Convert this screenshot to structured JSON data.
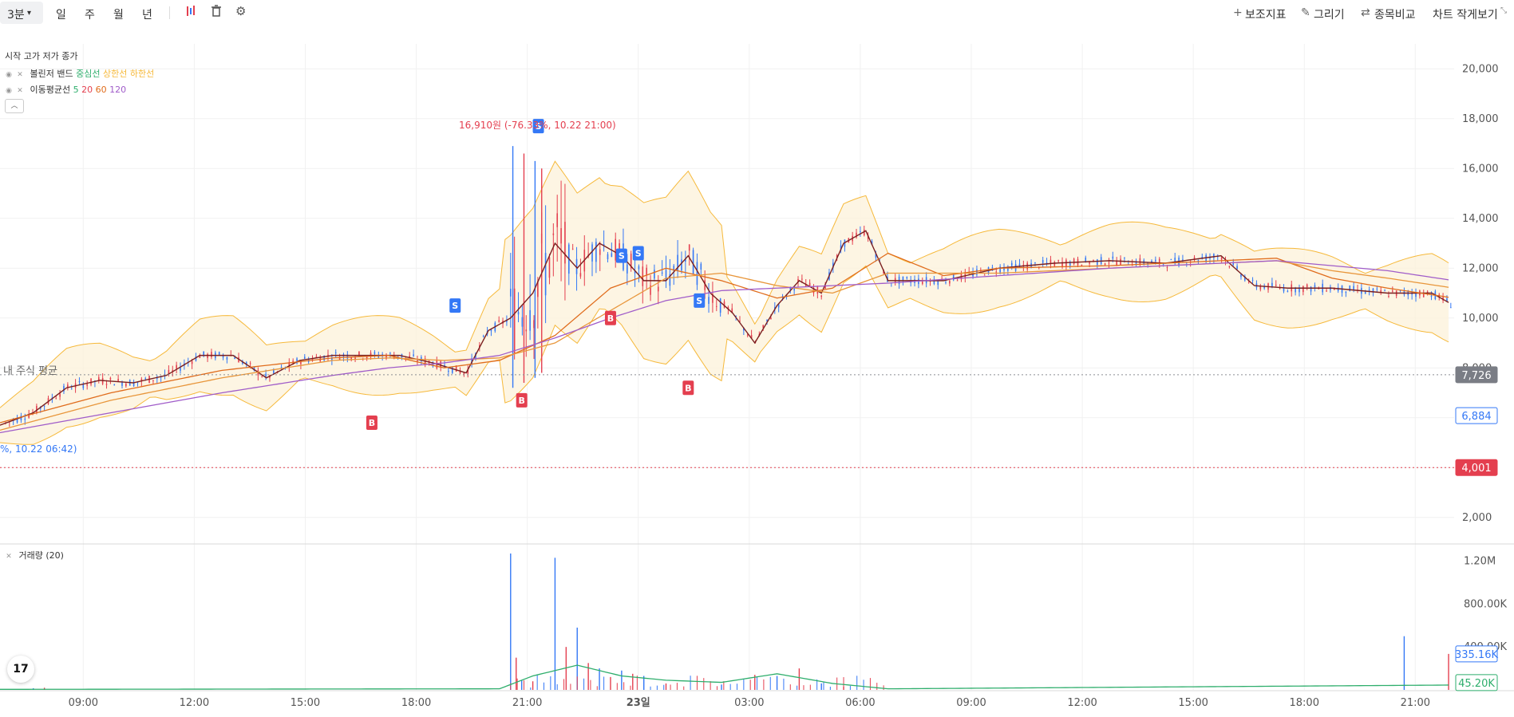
{
  "toolbar": {
    "interval": "3분",
    "day": "일",
    "week": "주",
    "month": "월",
    "year": "년",
    "indicators": "보조지표",
    "draw": "그리기",
    "compare": "종목비교",
    "shrink": "차트 작게보기"
  },
  "legend": {
    "ohlc": "시작  고가  저가  종가",
    "bb_name": "볼린저 밴드",
    "bb_mid": "중심선",
    "bb_upper": "상한선",
    "bb_lower": "하한선",
    "ma_name": "이동평균선",
    "ma5": "5",
    "ma20": "20",
    "ma60": "60",
    "ma120": "120",
    "volume": "거래량 (20)"
  },
  "annotations": {
    "my_avg_label": "내 주식 평균",
    "high_label": "16,910원 (-76.33%, 10.22 21:00)",
    "low_label": "%, 10.22 06:42)"
  },
  "colors": {
    "bb": "#f6b93b",
    "bb_fill": "#fdf3dc",
    "ma5": "#7a1f1f",
    "ma20": "#e06c1c",
    "ma60": "#a05cc9",
    "ma120": "#a05cc9",
    "ma_mid": "#2eae6c",
    "up": "#e43f4f",
    "down": "#3478f6",
    "buy_badge": "#e43f4f",
    "sell_badge": "#3478f6",
    "avg_badge": "#7a7d85",
    "vol_ma": "#2eae6c"
  },
  "chart_data": [
    {
      "type": "line",
      "title": "",
      "x_ticks": [
        "09:00",
        "12:00",
        "15:00",
        "18:00",
        "21:00",
        "23일",
        "03:00",
        "06:00",
        "09:00",
        "12:00",
        "15:00",
        "18:00",
        "21:00"
      ],
      "y_ticks": [
        "2,000",
        "4,000",
        "6,000",
        "8,000",
        "10,000",
        "12,000",
        "14,000",
        "16,000",
        "18,000",
        "20,000"
      ],
      "ylim": [
        1000,
        21000
      ],
      "xlim": [
        0,
        13.1
      ],
      "series": [
        {
          "name": "5",
          "x": [
            0,
            0.3,
            0.6,
            0.9,
            1.2,
            1.5,
            1.8,
            2.1,
            2.4,
            2.7,
            3.0,
            3.3,
            3.6,
            3.9,
            4.2,
            4.4,
            4.6,
            4.8,
            5.0,
            5.2,
            5.4,
            5.6,
            5.8,
            6.0,
            6.2,
            6.4,
            6.6,
            6.8,
            7.0,
            7.2,
            7.4,
            7.6,
            7.8,
            8.0,
            8.5,
            9.0,
            9.5,
            10.0,
            10.5,
            11.0,
            11.3,
            11.6,
            12.0,
            12.5,
            12.9,
            13.1
          ],
          "y": [
            5700,
            6200,
            7200,
            7500,
            7400,
            7700,
            8500,
            8500,
            7600,
            8300,
            8500,
            8500,
            8500,
            8200,
            7800,
            9500,
            10000,
            11000,
            13000,
            12000,
            13000,
            12500,
            11500,
            11500,
            12500,
            11000,
            10200,
            9000,
            10500,
            11500,
            11000,
            13000,
            13500,
            11500,
            11500,
            12000,
            12200,
            12300,
            12200,
            12500,
            11300,
            11200,
            11200,
            11000,
            11000,
            10500
          ]
        },
        {
          "name": "20",
          "x": [
            0,
            1,
            2,
            3,
            3.5,
            4,
            4.5,
            5,
            5.5,
            6,
            6.5,
            7,
            7.5,
            8,
            8.5,
            9,
            10,
            11,
            11.5,
            12,
            12.5,
            13.1
          ],
          "y": [
            5800,
            7000,
            7900,
            8400,
            8500,
            8000,
            8300,
            9300,
            11200,
            12000,
            11500,
            10800,
            11200,
            12600,
            11700,
            12000,
            12100,
            12300,
            12400,
            11600,
            11200,
            10800
          ]
        },
        {
          "name": "60",
          "x": [
            0,
            1,
            2,
            3,
            3.5,
            4,
            4.5,
            5,
            5.5,
            6,
            6.5,
            7,
            7.5,
            8,
            9,
            10,
            11,
            11.5,
            12,
            12.5,
            13.1
          ],
          "y": [
            5500,
            6700,
            7600,
            8300,
            8400,
            8300,
            8400,
            9000,
            10300,
            11600,
            11800,
            11300,
            11000,
            11800,
            11800,
            12000,
            12200,
            12300,
            11900,
            11600,
            11200
          ]
        },
        {
          "name": "120",
          "x": [
            0,
            1,
            2,
            3,
            3.5,
            4,
            4.5,
            5,
            5.5,
            6,
            6.5,
            7,
            7.5,
            8,
            9,
            10,
            11,
            11.5,
            12,
            12.5,
            13.1
          ],
          "y": [
            5400,
            6200,
            7000,
            7700,
            8000,
            8200,
            8500,
            9200,
            10000,
            10700,
            11100,
            11200,
            11300,
            11400,
            11700,
            12000,
            12200,
            12300,
            12100,
            11900,
            11500
          ]
        }
      ],
      "markers": {
        "buy": [
          {
            "x": 3.35,
            "y": 5800
          },
          {
            "x": 4.7,
            "y": 6700
          },
          {
            "x": 5.5,
            "y": 10000
          },
          {
            "x": 6.2,
            "y": 7200
          }
        ],
        "sell": [
          {
            "x": 4.1,
            "y": 10500
          },
          {
            "x": 4.85,
            "y": 17700
          },
          {
            "x": 5.6,
            "y": 12500
          },
          {
            "x": 5.75,
            "y": 12600
          },
          {
            "x": 6.3,
            "y": 10700
          }
        ]
      },
      "price_labels": {
        "avg": "7,726",
        "current": "6,884",
        "low": "4,001"
      }
    },
    {
      "type": "bar",
      "title": "",
      "y_ticks": [
        "1.20M",
        "800.00K",
        "400.00K"
      ],
      "ylim": [
        0,
        1300000
      ],
      "xlim": [
        0,
        13.1
      ],
      "x": [
        0.3,
        0.4,
        4.6,
        4.65,
        4.7,
        4.8,
        5.0,
        5.1,
        5.2,
        5.3,
        5.4,
        5.5,
        5.6,
        5.7,
        5.8,
        6.0,
        6.5,
        6.8,
        7.0,
        7.2,
        7.4,
        7.6,
        12.65,
        13.05
      ],
      "values": [
        15000,
        20000,
        1270000,
        300000,
        90000,
        80000,
        1230000,
        400000,
        580000,
        250000,
        200000,
        120000,
        180000,
        150000,
        130000,
        60000,
        50000,
        140000,
        130000,
        200000,
        60000,
        30000,
        500000,
        335160
      ],
      "ma": {
        "x": [
          0,
          4.5,
          4.8,
          5.2,
          5.6,
          6.0,
          6.5,
          7.0,
          7.5,
          8.0,
          13.1
        ],
        "values": [
          5000,
          10000,
          130000,
          230000,
          130000,
          90000,
          70000,
          150000,
          60000,
          10000,
          45200
        ]
      },
      "value_labels": {
        "volume": "335.16K",
        "ma": "45.20K"
      }
    }
  ]
}
